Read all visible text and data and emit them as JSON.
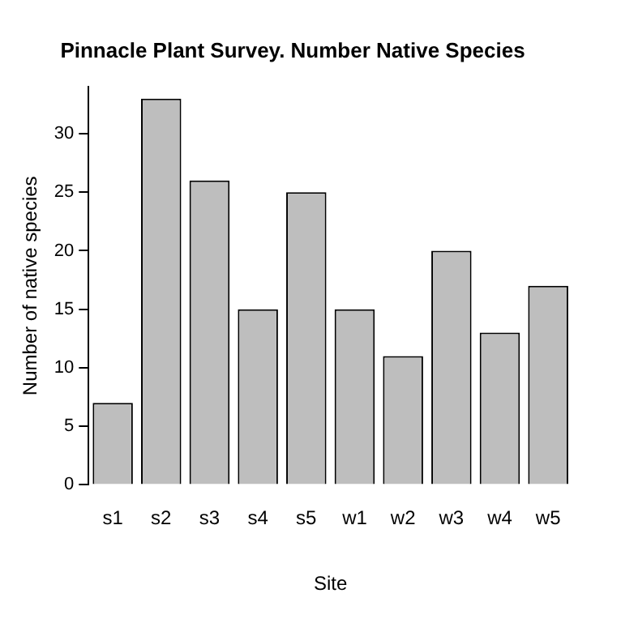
{
  "chart_data": {
    "type": "bar",
    "title": "Pinnacle Plant Survey. Number Native Species",
    "xlabel": "Site",
    "ylabel": "Number of native species",
    "categories": [
      "s1",
      "s2",
      "s3",
      "s4",
      "s5",
      "w1",
      "w2",
      "w3",
      "w4",
      "w5"
    ],
    "values": [
      7,
      33,
      26,
      15,
      25,
      15,
      11,
      20,
      13,
      17
    ],
    "color": "#bebebe",
    "ylim": [
      0,
      34
    ],
    "yticks": [
      0,
      5,
      10,
      15,
      20,
      25,
      30
    ],
    "grid": false,
    "legend": false
  }
}
